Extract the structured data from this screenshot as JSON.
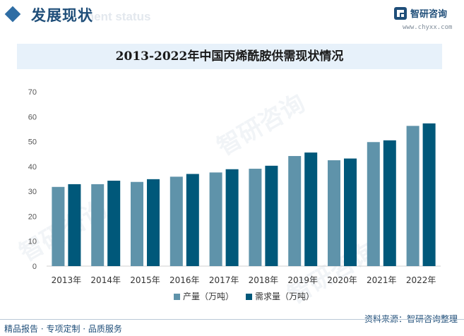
{
  "header": {
    "section_title": "发展现状",
    "section_subtitle": "ment status",
    "brand_name": "智研咨询",
    "brand_url": "www.chyxx.com"
  },
  "chart_data": {
    "type": "bar",
    "title": "2013-2022年中国丙烯酰胺供需现状情况",
    "categories": [
      "2013年",
      "2014年",
      "2015年",
      "2016年",
      "2017年",
      "2018年",
      "2019年",
      "2020年",
      "2021年",
      "2022年"
    ],
    "series": [
      {
        "name": "产量（万吨）",
        "color": "#5f93aa",
        "values": [
          31.8,
          32.9,
          33.8,
          35.9,
          37.6,
          39.1,
          44.2,
          42.5,
          49.8,
          56.3
        ]
      },
      {
        "name": "需求量（万吨）",
        "color": "#00587a",
        "values": [
          32.9,
          34.3,
          34.9,
          37.0,
          38.9,
          40.3,
          45.6,
          43.2,
          50.5,
          57.3
        ]
      }
    ],
    "yticks": [
      0,
      10,
      20,
      30,
      40,
      50,
      60,
      70
    ],
    "ylim": [
      0,
      70
    ],
    "xlabel": "",
    "ylabel": "",
    "legend": "bottom",
    "grid": false
  },
  "footer": {
    "source": "资料来源：智研咨询整理",
    "tagline": "精品报告 · 专项定制 · 品质服务"
  },
  "watermark_text": "智研咨询"
}
